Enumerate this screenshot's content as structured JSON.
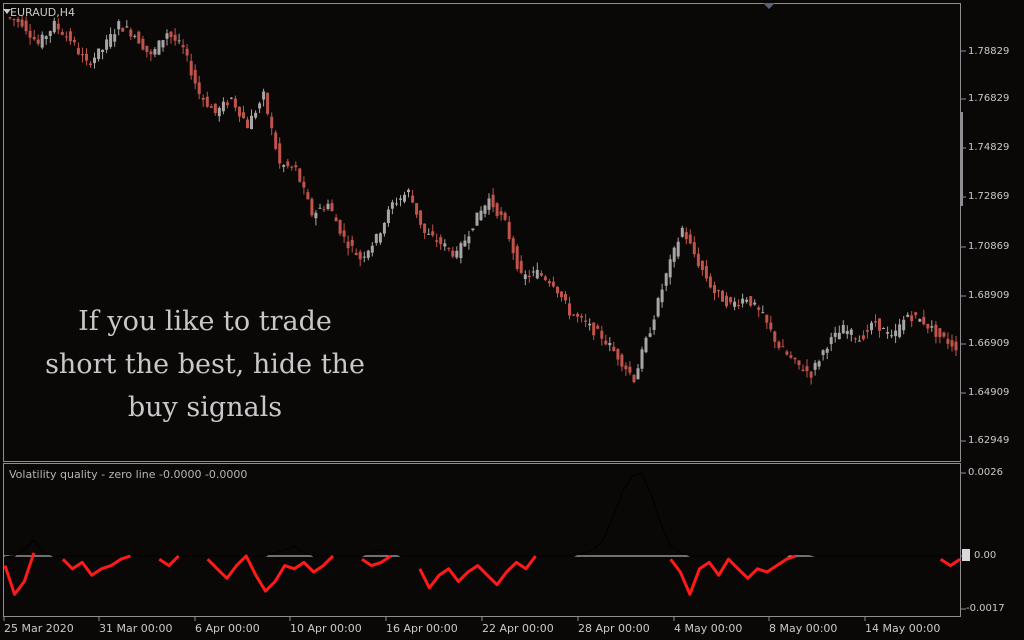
{
  "symbol": "EURAUD,H4",
  "overlay_text": [
    "If you like to trade",
    "short the best, hide the",
    "buy signals"
  ],
  "indicator": {
    "label": "Volatility quality - zero line -0.0000 -0.0000",
    "scale_labels": [
      "0.0026",
      "0.00",
      "-0.0017"
    ]
  },
  "price_scale": [
    "1.78829",
    "1.76829",
    "1.74829",
    "1.72869",
    "1.70869",
    "1.68909",
    "1.66909",
    "1.64909",
    "1.62949"
  ],
  "time_axis": [
    "25 Mar 2020",
    "31 Mar 00:00",
    "6 Apr 00:00",
    "10 Apr 00:00",
    "16 Apr 00:00",
    "22 Apr 00:00",
    "28 Apr 00:00",
    "4 May 00:00",
    "8 May 00:00",
    "14 May 00:00"
  ],
  "colors": {
    "bull": "#a6a6a6",
    "bear": "#c0544a",
    "signal": "#ff1a1a",
    "volatility": "#000000",
    "zero_line": "#d8d8d8"
  },
  "price_path": [
    [
      1.802,
      1.8
    ],
    [
      1.8,
      1.791
    ],
    [
      1.791,
      1.799
    ],
    [
      1.799,
      1.793
    ],
    [
      1.793,
      1.783
    ],
    [
      1.783,
      1.789
    ],
    [
      1.789,
      1.799
    ],
    [
      1.799,
      1.795
    ],
    [
      1.795,
      1.786
    ],
    [
      1.786,
      1.796
    ],
    [
      1.796,
      1.789
    ],
    [
      1.789,
      1.771
    ],
    [
      1.771,
      1.763
    ],
    [
      1.763,
      1.769
    ],
    [
      1.769,
      1.758
    ],
    [
      1.758,
      1.77
    ],
    [
      1.77,
      1.742
    ],
    [
      1.742,
      1.74
    ],
    [
      1.74,
      1.722
    ],
    [
      1.722,
      1.726
    ],
    [
      1.726,
      1.712
    ],
    [
      1.712,
      1.704
    ],
    [
      1.704,
      1.712
    ],
    [
      1.712,
      1.726
    ],
    [
      1.726,
      1.731
    ],
    [
      1.731,
      1.714
    ],
    [
      1.714,
      1.71
    ],
    [
      1.71,
      1.705
    ],
    [
      1.705,
      1.718
    ],
    [
      1.718,
      1.728
    ],
    [
      1.728,
      1.718
    ],
    [
      1.718,
      1.696
    ],
    [
      1.696,
      1.698
    ],
    [
      1.698,
      1.694
    ],
    [
      1.694,
      1.682
    ],
    [
      1.682,
      1.677
    ],
    [
      1.677,
      1.672
    ],
    [
      1.672,
      1.664
    ],
    [
      1.664,
      1.655
    ],
    [
      1.655,
      1.675
    ],
    [
      1.675,
      1.697
    ],
    [
      1.697,
      1.716
    ],
    [
      1.716,
      1.702
    ],
    [
      1.702,
      1.69
    ],
    [
      1.69,
      1.685
    ],
    [
      1.685,
      1.688
    ],
    [
      1.688,
      1.68
    ],
    [
      1.68,
      1.668
    ],
    [
      1.668,
      1.661
    ],
    [
      1.661,
      1.657
    ],
    [
      1.657,
      1.669
    ],
    [
      1.669,
      1.675
    ],
    [
      1.675,
      1.671
    ],
    [
      1.671,
      1.678
    ],
    [
      1.678,
      1.671
    ],
    [
      1.671,
      1.681
    ],
    [
      1.681,
      1.678
    ],
    [
      1.678,
      1.672
    ],
    [
      1.672,
      1.668
    ]
  ],
  "volatility_series": [
    -2e-05,
    0.0,
    0.0002,
    0.0005,
    0.0001,
    0.0,
    0.0,
    0.0,
    0.0,
    0.0,
    0.0,
    0.0,
    0.0,
    0.0,
    0.0,
    0.0,
    0.0,
    0.0,
    0.0,
    0.0,
    0.0,
    0.0,
    0.0,
    0.0,
    0.0,
    0.0,
    0.0,
    0.0,
    0.0001,
    0.0002,
    0.0003,
    0.0001,
    0.0,
    0.0,
    0.0,
    0.0,
    0.0,
    0.0,
    0.0001,
    0.0002,
    0.0001,
    0.0,
    0.0,
    0.0,
    0.0,
    0.0,
    0.0,
    0.0,
    0.0,
    0.0,
    0.0,
    0.0,
    0.0,
    0.0,
    0.0,
    0.0,
    0.0,
    0.0,
    0.0,
    0.0,
    0.0001,
    0.0002,
    0.0005,
    0.0012,
    0.002,
    0.0025,
    0.0026,
    0.0019,
    0.001,
    0.0003,
    0.0001,
    0.0,
    0.0,
    0.0,
    0.0,
    0.0,
    0.0,
    0.0,
    0.0,
    0.0,
    0.0,
    0.0,
    0.0001,
    5e-05,
    0.0,
    0.0,
    0.0,
    0.0,
    0.0,
    0.0,
    0.0,
    0.0,
    0.0,
    0.0,
    0.0,
    0.0,
    0.0,
    0.0,
    0.0,
    0.0
  ],
  "signal_series": [
    -0.0003,
    -0.0012,
    -0.0008,
    0.0001,
    null,
    null,
    -0.0001,
    -0.0004,
    -0.0002,
    -0.0006,
    -0.0004,
    -0.0003,
    -0.0001,
    0.0,
    null,
    null,
    -0.0001,
    -0.0003,
    0.0,
    null,
    null,
    -0.0001,
    -0.0004,
    -0.0007,
    -0.0003,
    0.0,
    -0.0006,
    -0.0011,
    -0.0008,
    -0.0003,
    -0.0004,
    -0.0002,
    -0.0005,
    -0.0003,
    0.0,
    null,
    null,
    -0.0001,
    -0.0003,
    -0.0002,
    0.0,
    null,
    null,
    -0.0004,
    -0.001,
    -0.0006,
    -0.0004,
    -0.0008,
    -0.0005,
    -0.0003,
    -0.0006,
    -0.0009,
    -0.0005,
    -0.0002,
    -0.0004,
    0.0,
    null,
    null,
    null,
    null,
    null,
    null,
    null,
    null,
    null,
    null,
    null,
    null,
    null,
    -0.0001,
    -0.0005,
    -0.0012,
    -0.0004,
    -0.0002,
    -0.0006,
    -0.0001,
    -0.0004,
    -0.0007,
    -0.0004,
    -0.0005,
    -0.0003,
    -0.0001,
    0.0,
    null,
    null,
    null,
    null,
    null,
    null,
    null,
    null,
    null,
    null,
    null,
    null,
    null,
    null,
    -0.0001,
    -0.0003,
    -0.0001
  ]
}
